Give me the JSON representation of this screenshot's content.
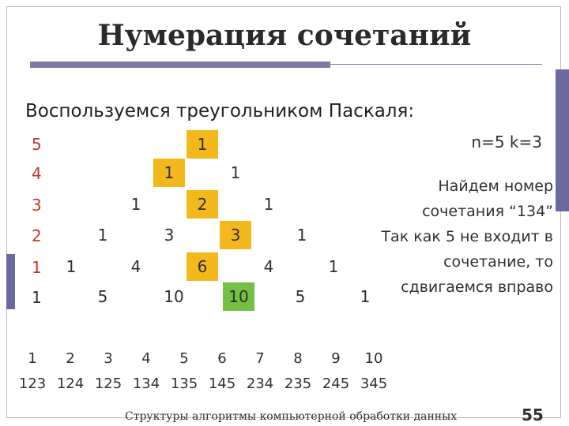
{
  "title": "Нумерация сочетаний",
  "subtitle": "Воспользуемся треугольником Паскаля:",
  "params": "n=5 k=3",
  "explanation": [
    "Найдем номер",
    "сочетания “134”",
    "Так как 5 не входит в",
    "сочетание, то",
    "сдвигаемся вправо"
  ],
  "row_labels": [
    "5",
    "4",
    "3",
    "2",
    "1",
    "1"
  ],
  "triangle": {
    "r0": [
      "1"
    ],
    "r1": [
      "1",
      "1"
    ],
    "r2": [
      "1",
      "2",
      "1"
    ],
    "r3": [
      "1",
      "3",
      "3",
      "1"
    ],
    "r4": [
      "1",
      "4",
      "6",
      "4",
      "1"
    ],
    "r5": [
      "5",
      "10",
      "10",
      "5",
      "1"
    ]
  },
  "indices": [
    "1",
    "2",
    "3",
    "4",
    "5",
    "6",
    "7",
    "8",
    "9",
    "10"
  ],
  "combinations": [
    "123",
    "124",
    "125",
    "134",
    "135",
    "145",
    "234",
    "235",
    "245",
    "345"
  ],
  "footer": "Структуры алгоритмы компьютерной обработки данных",
  "page_number": "55",
  "colors": {
    "highlight_orange": "#f2b81c",
    "highlight_green": "#74c043",
    "accent_bar": "#6a6aa0",
    "row_label": "#c0392b"
  }
}
